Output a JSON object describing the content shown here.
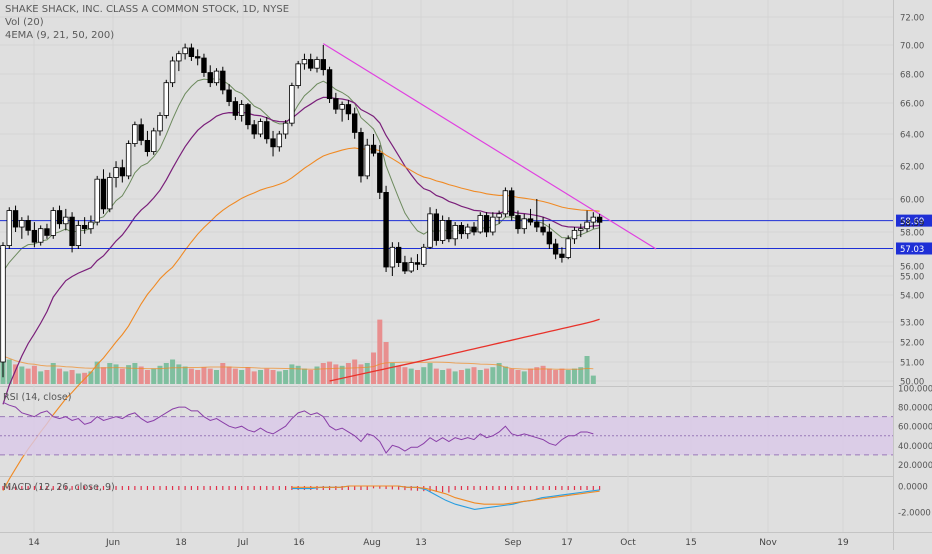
{
  "legend": {
    "title": "SHAKE SHACK, INC. CLASS A COMMON STOCK, 1D, NYSE",
    "vol": "Vol (20)",
    "ema": "4EMA (9, 21, 50, 200)"
  },
  "rsi_label": "RSI (14, close)",
  "macd_label": "MACD (12, 26, close, 9)",
  "colors": {
    "background": "#dfdfdf",
    "up_candle": "#ffffff",
    "down_candle": "#000000",
    "vol_up": "#7fbf9f",
    "vol_down": "#e88f8f",
    "ema9": "#6d8a5e",
    "ema21": "#7a1f7a",
    "ema50": "#f08a24",
    "ema200": "#e8322a",
    "trendline": "#e040e0",
    "hline": "#1e2fd6",
    "rsi_line": "#8a3fa8",
    "rsi_band": "#d9c8e8",
    "macd_line": "#2a9ee0",
    "signal_line": "#f08a24",
    "hist": "#e0304a"
  },
  "chart_data": {
    "type": "candlestick",
    "title": "SHAKE SHACK, INC. CLASS A COMMON STOCK, 1D, NYSE",
    "price_axis": {
      "ticks": [
        "72.00",
        "70.00",
        "68.00",
        "66.00",
        "64.00",
        "62.00",
        "60.00",
        "58.00",
        "56.00",
        "55.00",
        "54.00",
        "53.00",
        "52.00",
        "51.00",
        "50.00"
      ],
      "tick_values": [
        72,
        70,
        68,
        66,
        64,
        62,
        60,
        58,
        56,
        55,
        54,
        53,
        52,
        51,
        50
      ],
      "price_lines": [
        {
          "label": "58.69",
          "value": 58.69,
          "highlight": true
        },
        {
          "label": "58.59",
          "value": 58.59,
          "highlight": false
        },
        {
          "label": "57.03",
          "value": 57.03,
          "highlight": true
        }
      ]
    },
    "time_axis": {
      "labels": [
        "14",
        "Jun",
        "18",
        "Jul",
        "16",
        "Aug",
        "13",
        "Sep",
        "17",
        "Oct",
        "15",
        "Nov",
        "19"
      ]
    },
    "candles": [
      [
        51.0,
        57.4,
        50.2,
        57.2
      ],
      [
        57.2,
        59.5,
        57.0,
        59.3
      ],
      [
        59.3,
        59.6,
        58.0,
        58.3
      ],
      [
        58.3,
        58.9,
        57.6,
        58.7
      ],
      [
        58.7,
        59.0,
        57.8,
        58.1
      ],
      [
        58.1,
        58.6,
        57.1,
        57.4
      ],
      [
        57.4,
        58.4,
        57.2,
        58.2
      ],
      [
        58.2,
        58.5,
        57.6,
        57.8
      ],
      [
        57.8,
        59.5,
        57.6,
        59.3
      ],
      [
        59.3,
        59.6,
        58.2,
        58.5
      ],
      [
        58.5,
        59.4,
        58.1,
        58.9
      ],
      [
        58.9,
        59.2,
        56.8,
        57.2
      ],
      [
        57.2,
        58.7,
        57.0,
        58.4
      ],
      [
        58.4,
        58.9,
        57.9,
        58.2
      ],
      [
        58.2,
        59.0,
        57.9,
        58.6
      ],
      [
        58.6,
        61.4,
        58.4,
        61.2
      ],
      [
        61.2,
        61.8,
        59.1,
        59.4
      ],
      [
        59.4,
        61.6,
        59.2,
        61.3
      ],
      [
        61.3,
        62.3,
        60.7,
        61.9
      ],
      [
        61.9,
        62.4,
        61.0,
        61.4
      ],
      [
        61.4,
        63.6,
        61.2,
        63.4
      ],
      [
        63.4,
        64.8,
        63.2,
        64.6
      ],
      [
        64.6,
        65.0,
        63.3,
        63.6
      ],
      [
        63.6,
        64.2,
        62.6,
        62.9
      ],
      [
        62.9,
        64.4,
        62.7,
        64.2
      ],
      [
        64.2,
        65.4,
        63.9,
        65.2
      ],
      [
        65.2,
        67.6,
        65.0,
        67.4
      ],
      [
        67.4,
        69.2,
        67.1,
        68.9
      ],
      [
        68.9,
        69.6,
        68.2,
        69.4
      ],
      [
        69.4,
        70.1,
        69.0,
        69.8
      ],
      [
        69.8,
        70.1,
        68.9,
        69.2
      ],
      [
        69.2,
        69.7,
        68.6,
        69.1
      ],
      [
        69.1,
        69.4,
        67.8,
        68.1
      ],
      [
        68.1,
        68.6,
        67.1,
        67.4
      ],
      [
        67.4,
        68.4,
        67.2,
        68.2
      ],
      [
        68.2,
        68.5,
        66.6,
        66.9
      ],
      [
        66.9,
        67.3,
        65.8,
        66.1
      ],
      [
        66.1,
        66.4,
        64.9,
        65.2
      ],
      [
        65.2,
        66.2,
        64.8,
        65.9
      ],
      [
        65.9,
        66.0,
        64.3,
        64.6
      ],
      [
        64.6,
        64.9,
        63.7,
        64.0
      ],
      [
        64.0,
        65.0,
        63.8,
        64.8
      ],
      [
        64.8,
        65.1,
        63.4,
        63.7
      ],
      [
        63.7,
        64.2,
        62.6,
        63.2
      ],
      [
        63.2,
        64.2,
        62.9,
        64.0
      ],
      [
        64.0,
        64.9,
        63.7,
        64.7
      ],
      [
        64.7,
        67.4,
        64.5,
        67.2
      ],
      [
        67.2,
        68.9,
        67.0,
        68.7
      ],
      [
        68.7,
        69.4,
        68.3,
        69.0
      ],
      [
        69.0,
        69.4,
        68.2,
        68.4
      ],
      [
        68.4,
        69.2,
        68.1,
        69.0
      ],
      [
        69.0,
        70.0,
        67.9,
        68.3
      ],
      [
        68.3,
        68.5,
        66.0,
        66.3
      ],
      [
        66.3,
        66.7,
        65.3,
        65.6
      ],
      [
        65.6,
        66.1,
        64.8,
        65.9
      ],
      [
        65.9,
        66.2,
        64.9,
        65.3
      ],
      [
        65.3,
        65.7,
        63.7,
        64.1
      ],
      [
        64.1,
        64.4,
        61.0,
        61.4
      ],
      [
        61.4,
        63.7,
        61.2,
        63.3
      ],
      [
        63.3,
        64.0,
        62.6,
        62.8
      ],
      [
        62.8,
        63.3,
        60.0,
        60.4
      ],
      [
        60.4,
        60.8,
        55.4,
        55.9
      ],
      [
        55.9,
        57.4,
        55.0,
        57.1
      ],
      [
        57.1,
        57.4,
        55.9,
        56.2
      ],
      [
        56.2,
        56.6,
        55.2,
        55.5
      ],
      [
        55.5,
        56.5,
        55.3,
        56.2
      ],
      [
        56.2,
        56.7,
        55.6,
        56.1
      ],
      [
        56.1,
        57.3,
        55.9,
        57.1
      ],
      [
        57.1,
        59.5,
        57.0,
        59.1
      ],
      [
        59.1,
        59.4,
        57.2,
        57.5
      ],
      [
        57.5,
        59.0,
        57.3,
        58.7
      ],
      [
        58.7,
        58.9,
        57.4,
        57.6
      ],
      [
        57.6,
        58.6,
        57.2,
        58.4
      ],
      [
        58.4,
        58.6,
        57.6,
        57.9
      ],
      [
        57.9,
        58.5,
        57.6,
        58.3
      ],
      [
        58.3,
        58.6,
        57.8,
        58.0
      ],
      [
        58.0,
        59.2,
        57.9,
        59.0
      ],
      [
        59.0,
        59.2,
        57.7,
        58.0
      ],
      [
        58.0,
        59.2,
        57.8,
        58.9
      ],
      [
        58.9,
        59.3,
        58.5,
        59.1
      ],
      [
        59.1,
        60.7,
        58.9,
        60.5
      ],
      [
        60.5,
        60.7,
        58.7,
        59.0
      ],
      [
        59.0,
        59.3,
        57.9,
        58.2
      ],
      [
        58.2,
        59.1,
        57.9,
        58.8
      ],
      [
        58.8,
        59.4,
        58.4,
        58.6
      ],
      [
        58.6,
        60.0,
        58.0,
        58.3
      ],
      [
        58.3,
        58.9,
        57.8,
        58.0
      ],
      [
        58.0,
        58.5,
        57.0,
        57.3
      ],
      [
        57.3,
        57.6,
        56.4,
        56.7
      ],
      [
        56.7,
        57.1,
        56.2,
        56.5
      ],
      [
        56.5,
        57.8,
        56.4,
        57.6
      ],
      [
        57.6,
        58.3,
        57.3,
        58.1
      ],
      [
        58.1,
        58.5,
        57.7,
        58.2
      ],
      [
        58.2,
        59.3,
        58.0,
        58.6
      ],
      [
        58.6,
        59.2,
        58.2,
        58.9
      ],
      [
        58.9,
        59.1,
        57.0,
        58.59
      ]
    ],
    "volume_relative": [
      0.42,
      0.35,
      0.28,
      0.25,
      0.22,
      0.26,
      0.18,
      0.2,
      0.3,
      0.22,
      0.18,
      0.2,
      0.15,
      0.16,
      0.18,
      0.32,
      0.24,
      0.3,
      0.28,
      0.22,
      0.27,
      0.3,
      0.25,
      0.2,
      0.22,
      0.26,
      0.3,
      0.35,
      0.28,
      0.25,
      0.22,
      0.2,
      0.24,
      0.22,
      0.2,
      0.3,
      0.25,
      0.22,
      0.2,
      0.24,
      0.18,
      0.2,
      0.22,
      0.2,
      0.18,
      0.2,
      0.28,
      0.26,
      0.22,
      0.2,
      0.25,
      0.3,
      0.32,
      0.28,
      0.26,
      0.3,
      0.35,
      0.28,
      0.3,
      0.45,
      0.92,
      0.6,
      0.3,
      0.26,
      0.24,
      0.22,
      0.2,
      0.24,
      0.3,
      0.22,
      0.2,
      0.22,
      0.18,
      0.2,
      0.22,
      0.24,
      0.2,
      0.22,
      0.24,
      0.3,
      0.25,
      0.22,
      0.2,
      0.18,
      0.22,
      0.24,
      0.26,
      0.22,
      0.2,
      0.22,
      0.2,
      0.22,
      0.24,
      0.4,
      0.12
    ],
    "volume_ma_relative": [
      0.32,
      0.28,
      0.26,
      0.25,
      0.24
    ],
    "ema": {
      "ema9_endpoint": 58.3,
      "ema21_endpoint": 58.4,
      "ema50_endpoint": 58.6,
      "ema200_endpoint": 53.1
    },
    "trendline": {
      "from_index": 51,
      "from_value": 70.1,
      "to_index": 104,
      "to_value": 57.0
    },
    "rsi": {
      "axis_ticks": [
        "100.0000",
        "80.0000",
        "60.0000",
        "40.0000",
        "20.0000"
      ],
      "tick_values": [
        100,
        80,
        60,
        40,
        20
      ],
      "bands": [
        70,
        50,
        30
      ],
      "values": [
        85,
        82,
        80,
        74,
        72,
        70,
        74,
        76,
        70,
        68,
        70,
        66,
        68,
        62,
        64,
        70,
        66,
        68,
        70,
        68,
        72,
        74,
        68,
        64,
        66,
        70,
        74,
        78,
        80,
        80,
        76,
        76,
        70,
        66,
        68,
        64,
        60,
        58,
        60,
        56,
        54,
        58,
        54,
        52,
        56,
        60,
        68,
        74,
        76,
        72,
        74,
        70,
        60,
        56,
        58,
        54,
        50,
        44,
        52,
        50,
        44,
        32,
        40,
        38,
        34,
        38,
        38,
        42,
        48,
        44,
        48,
        44,
        48,
        46,
        48,
        46,
        52,
        48,
        50,
        54,
        60,
        52,
        50,
        52,
        50,
        48,
        46,
        42,
        40,
        46,
        50,
        50,
        54,
        54,
        52
      ]
    },
    "macd": {
      "axis_ticks": [
        "0.0000",
        "-2.0000"
      ],
      "tick_values": [
        0,
        -2
      ],
      "macd_values": [
        -0.2,
        -0.2,
        -0.2,
        -0.1,
        -0.1,
        -0.1,
        0.0,
        0.0,
        0.0,
        0.0,
        0.0,
        0.0,
        -0.1,
        -0.1,
        -0.3,
        -0.7,
        -1.1,
        -1.4,
        -1.6,
        -1.8,
        -1.7,
        -1.6,
        -1.5,
        -1.4,
        -1.2,
        -1.1,
        -0.9,
        -0.8,
        -0.7,
        -0.6,
        -0.5,
        -0.4,
        -0.3
      ],
      "signal_values": [
        -0.1,
        -0.1,
        -0.1,
        -0.1,
        -0.1,
        -0.1,
        0.0,
        0.0,
        0.0,
        0.0,
        0.0,
        0.0,
        -0.1,
        -0.1,
        -0.2,
        -0.4,
        -0.6,
        -0.9,
        -1.1,
        -1.3,
        -1.4,
        -1.4,
        -1.4,
        -1.3,
        -1.2,
        -1.1,
        -1.0,
        -0.9,
        -0.8,
        -0.7,
        -0.6,
        -0.5,
        -0.4
      ]
    }
  }
}
